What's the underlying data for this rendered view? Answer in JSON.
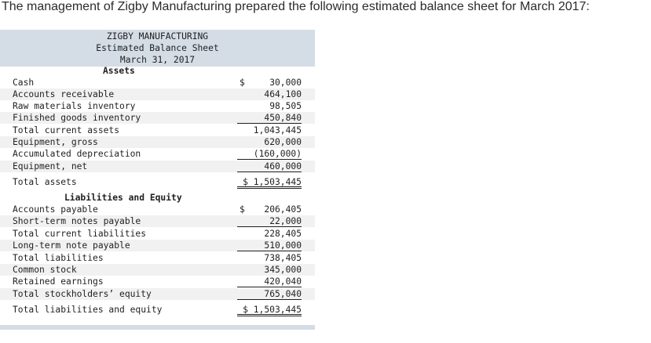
{
  "intro_text": "The management of Zigby Manufacturing prepared the following estimated balance sheet for March 2017:",
  "header": {
    "company": "ZIGBY MANUFACTURING",
    "statement": "Estimated Balance Sheet",
    "date": "March 31, 2017"
  },
  "assets": {
    "title": "Assets",
    "rows": [
      {
        "label": "Cash",
        "currency": "$",
        "amount": "30,000"
      },
      {
        "label": "Accounts receivable",
        "currency": "",
        "amount": "464,100"
      },
      {
        "label": "Raw materials inventory",
        "currency": "",
        "amount": "98,505"
      },
      {
        "label": "Finished goods inventory",
        "currency": "",
        "amount": "450,840"
      },
      {
        "label": "Total current assets",
        "currency": "",
        "amount": "1,043,445"
      },
      {
        "label": "Equipment, gross",
        "currency": "",
        "amount": "620,000"
      },
      {
        "label": "Accumulated depreciation",
        "currency": "",
        "amount": "(160,000)"
      },
      {
        "label": "Equipment, net",
        "currency": "",
        "amount": "460,000"
      },
      {
        "label": "Total assets",
        "currency": "",
        "amount": "$ 1,503,445"
      }
    ]
  },
  "liabilities_equity": {
    "title": "Liabilities and Equity",
    "rows": [
      {
        "label": "Accounts payable",
        "currency": "$",
        "amount": "206,405"
      },
      {
        "label": "Short-term notes payable",
        "currency": "",
        "amount": "22,000"
      },
      {
        "label": "Total current liabilities",
        "currency": "",
        "amount": "228,405"
      },
      {
        "label": "Long-term note payable",
        "currency": "",
        "amount": "510,000"
      },
      {
        "label": "Total liabilities",
        "currency": "",
        "amount": "738,405"
      },
      {
        "label": "Common stock",
        "currency": "",
        "amount": "345,000"
      },
      {
        "label": "Retained earnings",
        "currency": "",
        "amount": "420,040"
      },
      {
        "label": "Total stockholders’ equity",
        "currency": "",
        "amount": "765,040"
      },
      {
        "label": "Total liabilities and equity",
        "currency": "",
        "amount": "$ 1,503,445"
      }
    ]
  }
}
